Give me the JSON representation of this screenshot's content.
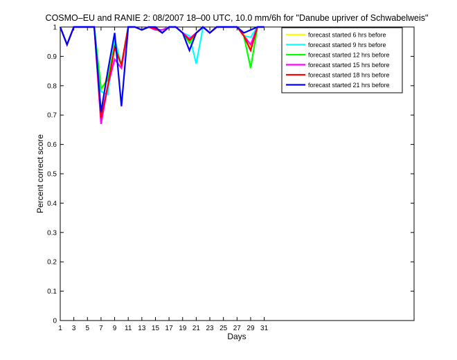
{
  "chart_data": {
    "type": "line",
    "title": "COSMO–EU and RANIE 2: 08/2007 18–00 UTC, 10.0 mm/6h for \"Danube upriver of Schwabelweis\"",
    "xlabel": "Days",
    "ylabel": "Percent correct score",
    "xlim": [
      1,
      53
    ],
    "ylim": [
      0,
      1
    ],
    "x_ticks": [
      1,
      3,
      5,
      7,
      9,
      11,
      13,
      15,
      17,
      19,
      21,
      23,
      25,
      27,
      29,
      31
    ],
    "y_ticks": [
      0,
      0.1,
      0.2,
      0.3,
      0.4,
      0.5,
      0.6,
      0.7,
      0.8,
      0.9,
      1
    ],
    "y_tick_labels": [
      "0",
      "0.1",
      "0.2",
      "0.3",
      "0.4",
      "0.5",
      "0.6",
      "0.7",
      "0.8",
      "0.9",
      "1"
    ],
    "grid": false,
    "legend_position": "top-right",
    "x": [
      1,
      2,
      3,
      4,
      5,
      6,
      7,
      8,
      9,
      10,
      11,
      12,
      13,
      14,
      15,
      16,
      17,
      18,
      19,
      20,
      21,
      22,
      23,
      24,
      25,
      26,
      27,
      28,
      29,
      30,
      31
    ],
    "series": [
      {
        "name": "forecast started 6 hrs before",
        "color": "#ffff00",
        "values": [
          1,
          0.94,
          1,
          1,
          1,
          1,
          0.78,
          0.84,
          0.93,
          0.87,
          1,
          1,
          0.99,
          1,
          0.99,
          0.99,
          1,
          1,
          0.98,
          0.95,
          0.98,
          1,
          0.98,
          1,
          1,
          1,
          1,
          0.98,
          0.93,
          1,
          1
        ]
      },
      {
        "name": "forecast started 9 hrs before",
        "color": "#00ffff",
        "values": [
          1,
          0.94,
          1,
          1,
          1,
          1,
          0.78,
          0.77,
          0.96,
          0.87,
          1,
          1,
          0.99,
          1,
          0.99,
          0.99,
          1,
          1,
          0.98,
          0.97,
          0.875,
          1,
          0.98,
          1,
          1,
          1,
          1,
          0.97,
          0.965,
          1,
          1
        ]
      },
      {
        "name": "forecast started 12 hrs before",
        "color": "#00ff00",
        "values": [
          1,
          0.94,
          1,
          1,
          1,
          1,
          0.79,
          0.82,
          0.94,
          0.87,
          1,
          1,
          0.99,
          1,
          0.99,
          0.99,
          1,
          1,
          0.98,
          0.945,
          0.98,
          1,
          0.98,
          1,
          1,
          1,
          1,
          0.97,
          0.86,
          1,
          1
        ]
      },
      {
        "name": "forecast started 15 hrs before",
        "color": "#ff00ff",
        "values": [
          1,
          0.94,
          1,
          1,
          1,
          1,
          0.67,
          0.8,
          0.89,
          0.86,
          1,
          1,
          0.99,
          1,
          0.99,
          0.99,
          1,
          1,
          0.98,
          0.96,
          0.98,
          1,
          0.98,
          1,
          1,
          1,
          1,
          0.97,
          0.94,
          1,
          1
        ]
      },
      {
        "name": "forecast started 18 hrs before",
        "color": "#ff0000",
        "values": [
          1,
          0.94,
          1,
          1,
          1,
          1,
          0.69,
          0.8,
          0.93,
          0.87,
          1,
          1,
          0.99,
          1,
          0.995,
          0.98,
          1,
          1,
          0.98,
          0.955,
          0.98,
          1,
          0.98,
          1,
          1,
          1,
          1,
          0.97,
          0.92,
          1,
          1
        ]
      },
      {
        "name": "forecast started 21 hrs before",
        "color": "#0000ff",
        "values": [
          1,
          0.94,
          1,
          1,
          1,
          1,
          0.71,
          0.85,
          0.98,
          0.73,
          1,
          1,
          0.99,
          1,
          1,
          0.98,
          1,
          1,
          0.98,
          0.92,
          0.98,
          1,
          0.98,
          1,
          1,
          1,
          1,
          0.98,
          0.99,
          1,
          1
        ]
      }
    ]
  }
}
